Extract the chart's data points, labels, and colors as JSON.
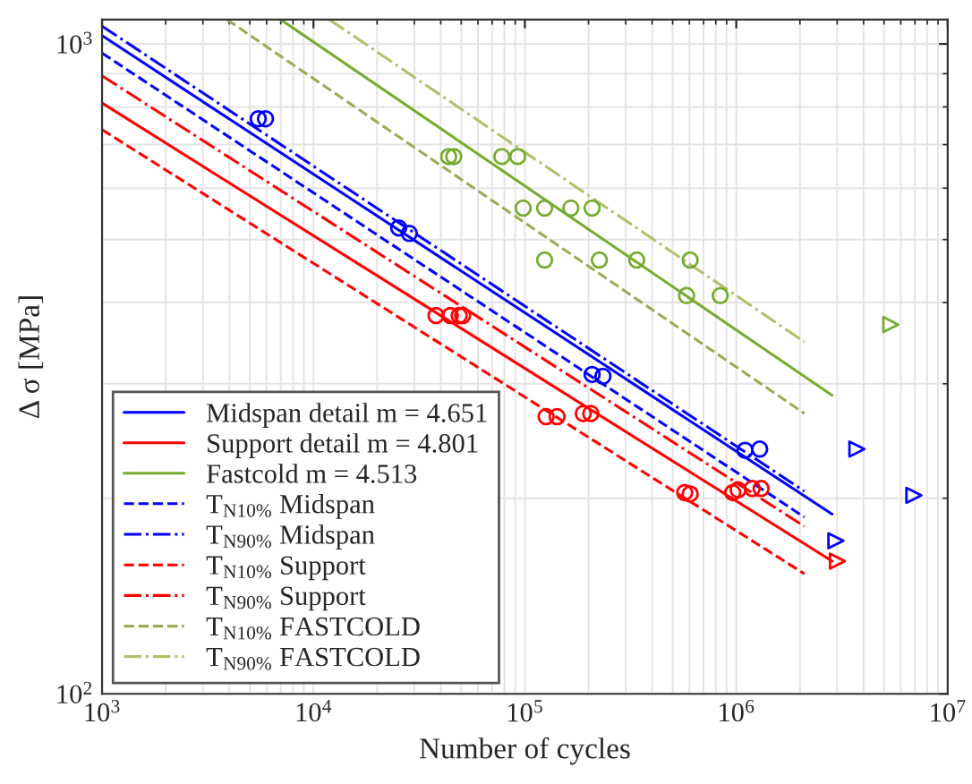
{
  "chart_data": {
    "type": "line",
    "xlabel": "Number of cycles",
    "ylabel": "Δ σ [MPa]",
    "log": "xy",
    "grid": true,
    "legend": "bottom left",
    "xlim": [
      1000,
      10000000
    ],
    "ylim": [
      100,
      1090
    ],
    "xticks": [
      {
        "value": 1000,
        "label": "10$^{3}$"
      },
      {
        "value": 10000,
        "label": "10$^{4}$"
      },
      {
        "value": 100000,
        "label": "10$^{5}$"
      },
      {
        "value": 1000000,
        "label": "10$^{6}$"
      },
      {
        "value": 10000000,
        "label": "10$^{7}$"
      }
    ],
    "yticks": [
      {
        "value": 100,
        "label": "10$^{2}$"
      },
      {
        "value": 1000,
        "label": "10$^{3}$"
      }
    ],
    "series": [
      {
        "name": "Midspan detail m = 4.651",
        "line_style": "solid",
        "color": "#0000ff",
        "x": [
          1000,
          2840000
        ],
        "values": [
          1030,
          189
        ]
      },
      {
        "name": "Support detail m = 4.801",
        "line_style": "solid",
        "color": "#ff0000",
        "x": [
          1000,
          2840000
        ],
        "values": [
          811,
          160
        ]
      },
      {
        "name": "Fastcold m = 4.513",
        "line_style": "solid",
        "color": "#77ac30",
        "x": [
          7000,
          2840000
        ],
        "values": [
          1090,
          288
        ]
      },
      {
        "name": "T$_{N10%}$ Midspan",
        "line_style": "dashed",
        "color": "#0000ff",
        "x": [
          1000,
          2100000
        ],
        "values": [
          968,
          187
        ]
      },
      {
        "name": "T$_{N90%}$ Midspan",
        "line_style": "dashdot",
        "color": "#0000ff",
        "x": [
          1000,
          2100000
        ],
        "values": [
          1065,
          205
        ]
      },
      {
        "name": "T$_{N10%}$ Support",
        "line_style": "dashed",
        "color": "#ff0000",
        "x": [
          1000,
          2100000
        ],
        "values": [
          738,
          153
        ]
      },
      {
        "name": "T$_{N90%}$ Support",
        "line_style": "dashdot",
        "color": "#ff0000",
        "x": [
          1000,
          2100000
        ],
        "values": [
          893,
          181
        ]
      },
      {
        "name": "T$_{N10%}$ FASTCOLD",
        "line_style": "dashed",
        "color": "#9aaa55",
        "x": [
          3900,
          2100000
        ],
        "values": [
          1090,
          270
        ]
      },
      {
        "name": "T$_{N90%}$ FASTCOLD",
        "line_style": "dashdot",
        "color": "#b3bf6a",
        "x": [
          11900,
          2100000
        ],
        "values": [
          1090,
          348
        ]
      },
      {
        "type": "scatter",
        "marker": "circle",
        "color": "#0000ff",
        "x": [
          5480,
          5930,
          25300,
          28400,
          208000,
          234000,
          1100000,
          1290000
        ],
        "values": [
          767,
          767,
          521,
          511,
          310,
          308,
          237,
          238
        ]
      },
      {
        "type": "scatter",
        "marker": "triangle",
        "color": "#0000ff",
        "x": [
          2960000,
          3720000,
          6920000
        ],
        "values": [
          172,
          238,
          202
        ]
      },
      {
        "type": "scatter",
        "marker": "circle",
        "color": "#ff0000",
        "x": [
          38000,
          44400,
          48900,
          50800,
          126000,
          142000,
          189000,
          205000,
          570000,
          605000,
          962000,
          1020000,
          1190000,
          1310000
        ],
        "values": [
          382,
          382,
          382,
          382,
          267,
          267,
          270,
          270,
          204,
          203,
          204,
          206,
          207,
          207
        ]
      },
      {
        "type": "scatter",
        "marker": "triangle",
        "color": "#ff0000",
        "x": [
          3010000
        ],
        "values": [
          160
        ]
      },
      {
        "type": "scatter",
        "marker": "circle",
        "color": "#77ac30",
        "x": [
          43600,
          46100,
          77800,
          92500,
          98100,
          124000,
          165000,
          208000,
          124000,
          225000,
          338000,
          605000,
          582000,
          840000
        ],
        "values": [
          671,
          671,
          671,
          671,
          559,
          559,
          559,
          559,
          465,
          465,
          465,
          465,
          410,
          410
        ]
      },
      {
        "type": "scatter",
        "marker": "triangle",
        "color": "#77ac30",
        "x": [
          5380000
        ],
        "values": [
          370
        ]
      }
    ]
  }
}
